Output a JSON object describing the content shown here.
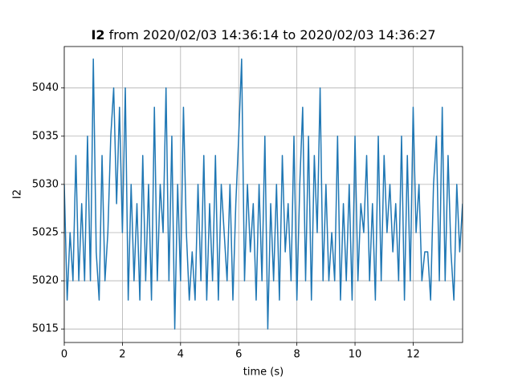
{
  "chart_data": {
    "type": "line",
    "title_var": "I2",
    "title": "from 2020/02/03 14:36:14 to 2020/02/03 14:36:27",
    "xlabel": "time (s)",
    "ylabel": "I2",
    "xlim": [
      0,
      13.7
    ],
    "ylim": [
      5013.6,
      5044.3
    ],
    "xticks": [
      0,
      2,
      4,
      6,
      8,
      10,
      12
    ],
    "yticks": [
      5015,
      5020,
      5025,
      5030,
      5035,
      5040
    ],
    "grid": true,
    "x": [
      0,
      0.1,
      0.2,
      0.3,
      0.4,
      0.5,
      0.6,
      0.7,
      0.8,
      0.9,
      1,
      1.1,
      1.2,
      1.3,
      1.4,
      1.5,
      1.6,
      1.7,
      1.8,
      1.9,
      2,
      2.1,
      2.2,
      2.3,
      2.4,
      2.5,
      2.6,
      2.7,
      2.8,
      2.9,
      3,
      3.1,
      3.2,
      3.3,
      3.4,
      3.5,
      3.6,
      3.7,
      3.8,
      3.9,
      4,
      4.1,
      4.2,
      4.3,
      4.4,
      4.5,
      4.6,
      4.7,
      4.8,
      4.9,
      5,
      5.1,
      5.2,
      5.3,
      5.4,
      5.5,
      5.6,
      5.7,
      5.8,
      5.9,
      6,
      6.1,
      6.2,
      6.3,
      6.4,
      6.5,
      6.6,
      6.7,
      6.8,
      6.9,
      7,
      7.1,
      7.2,
      7.3,
      7.4,
      7.5,
      7.6,
      7.7,
      7.8,
      7.9,
      8,
      8.1,
      8.2,
      8.3,
      8.4,
      8.5,
      8.6,
      8.7,
      8.8,
      8.9,
      9,
      9.1,
      9.2,
      9.3,
      9.4,
      9.5,
      9.6,
      9.7,
      9.8,
      9.9,
      10,
      10.1,
      10.2,
      10.3,
      10.4,
      10.5,
      10.6,
      10.7,
      10.8,
      10.9,
      11,
      11.1,
      11.2,
      11.3,
      11.4,
      11.5,
      11.6,
      11.7,
      11.8,
      11.9,
      12,
      12.1,
      12.2,
      12.3,
      12.4,
      12.5,
      12.6,
      12.7,
      12.8,
      12.9,
      13,
      13.1,
      13.2,
      13.3,
      13.4,
      13.5,
      13.6,
      13.7
    ],
    "series": [
      {
        "name": "I2",
        "color": "#1f77b4",
        "values": [
          5030,
          5018,
          5025,
          5020,
          5033,
          5020,
          5028,
          5020,
          5035,
          5020,
          5043,
          5023,
          5018,
          5033,
          5020,
          5025,
          5035,
          5040,
          5028,
          5038,
          5025,
          5040,
          5018,
          5030,
          5020,
          5028,
          5018,
          5033,
          5020,
          5030,
          5018,
          5038,
          5020,
          5030,
          5025,
          5040,
          5020,
          5035,
          5015,
          5030,
          5020,
          5038,
          5025,
          5018,
          5023,
          5018,
          5030,
          5020,
          5033,
          5018,
          5028,
          5020,
          5033,
          5018,
          5030,
          5025,
          5020,
          5030,
          5018,
          5028,
          5035,
          5043,
          5020,
          5030,
          5023,
          5028,
          5018,
          5030,
          5020,
          5035,
          5015,
          5028,
          5020,
          5030,
          5018,
          5033,
          5023,
          5028,
          5020,
          5035,
          5018,
          5030,
          5038,
          5020,
          5035,
          5018,
          5033,
          5025,
          5040,
          5020,
          5030,
          5020,
          5025,
          5020,
          5035,
          5018,
          5028,
          5020,
          5030,
          5018,
          5035,
          5020,
          5028,
          5025,
          5033,
          5020,
          5028,
          5018,
          5035,
          5020,
          5033,
          5025,
          5030,
          5023,
          5028,
          5020,
          5035,
          5018,
          5033,
          5020,
          5038,
          5025,
          5030,
          5020,
          5023,
          5023,
          5018,
          5030,
          5035,
          5020,
          5038,
          5020,
          5033,
          5023,
          5018,
          5030,
          5023,
          5028
        ]
      }
    ]
  }
}
